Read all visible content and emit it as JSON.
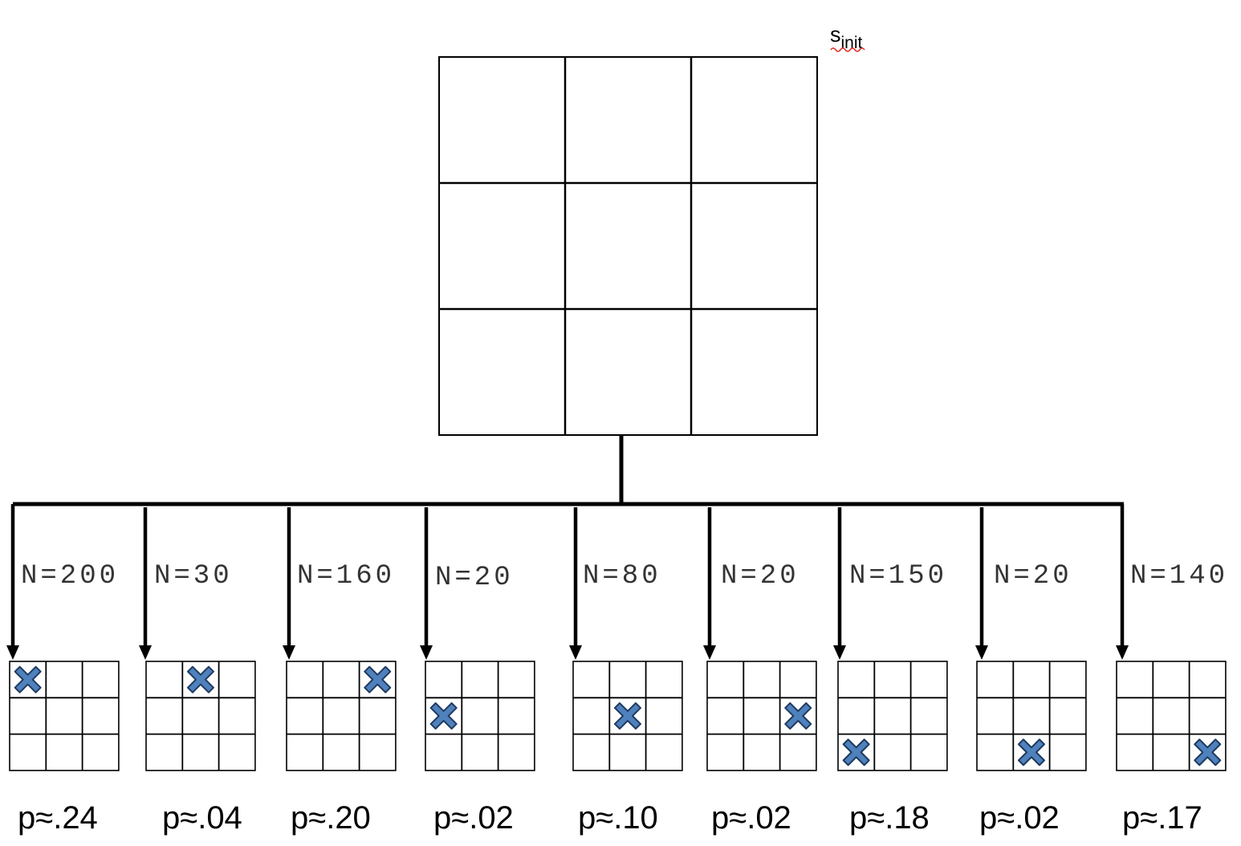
{
  "root": {
    "label": "s",
    "label_subscript": "init"
  },
  "children": [
    {
      "n_label": "N=200",
      "p_label": "p≈.24",
      "x_cell": [
        0,
        0
      ]
    },
    {
      "n_label": "N=30",
      "p_label": "p≈.04",
      "x_cell": [
        0,
        1
      ]
    },
    {
      "n_label": "N=160",
      "p_label": "p≈.20",
      "x_cell": [
        0,
        2
      ]
    },
    {
      "n_label": "N=20",
      "p_label": "p≈.02",
      "x_cell": [
        1,
        0
      ]
    },
    {
      "n_label": "N=80",
      "p_label": "p≈.10",
      "x_cell": [
        1,
        1
      ]
    },
    {
      "n_label": "N=20",
      "p_label": "p≈.02",
      "x_cell": [
        1,
        2
      ]
    },
    {
      "n_label": "N=150",
      "p_label": "p≈.18",
      "x_cell": [
        2,
        0
      ]
    },
    {
      "n_label": "N=20",
      "p_label": "p≈.02",
      "x_cell": [
        2,
        1
      ]
    },
    {
      "n_label": "N=140",
      "p_label": "p≈.17",
      "x_cell": [
        2,
        2
      ]
    }
  ],
  "colors": {
    "x_fill": "#4f81bd",
    "x_stroke": "#1f3a5f",
    "line": "#000000",
    "spellcheck_underline": "#e0352b"
  }
}
